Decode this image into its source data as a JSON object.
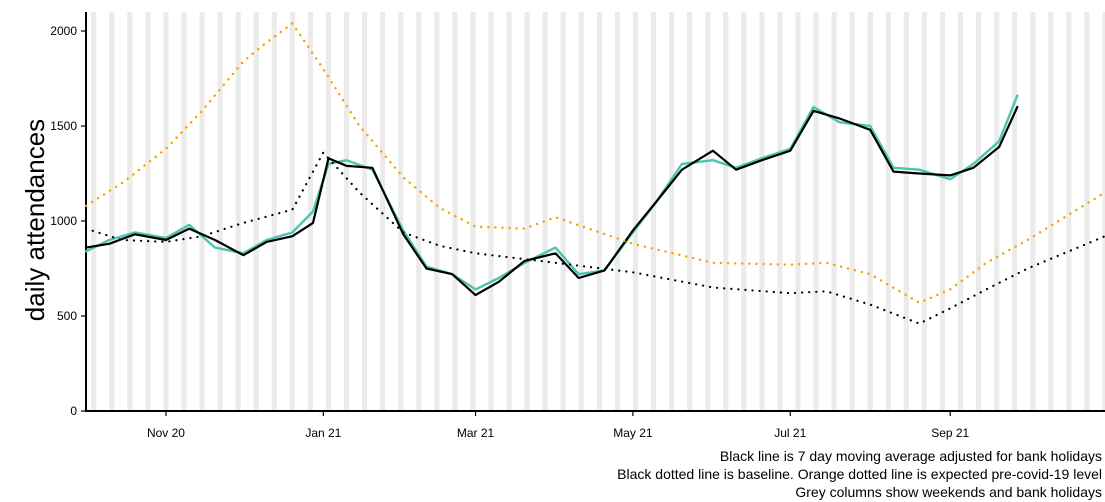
{
  "chart_data": {
    "type": "line",
    "title": "",
    "xlabel": "",
    "ylabel": "daily attendances",
    "x_range": [
      "2020-10-01",
      "2021-10-31"
    ],
    "ylim": [
      0,
      2100
    ],
    "y_ticks": [
      0,
      500,
      1000,
      1500,
      2000
    ],
    "x_ticks": [
      {
        "date": "2020-11-01",
        "label": "Nov 20"
      },
      {
        "date": "2021-01-01",
        "label": "Jan 21"
      },
      {
        "date": "2021-03-01",
        "label": "Mar 21"
      },
      {
        "date": "2021-05-01",
        "label": "May 21"
      },
      {
        "date": "2021-07-01",
        "label": "Jul 21"
      },
      {
        "date": "2021-09-01",
        "label": "Sep 21"
      }
    ],
    "grid": false,
    "background_bands": "weekends and bank holidays",
    "colors": {
      "actual": "#4cc4ae",
      "moving_average": "#000000",
      "baseline": "#000000",
      "expected": "#f5a300",
      "band": "#ebebeb"
    },
    "series": [
      {
        "style": "solid",
        "x": [
          "2020-10-01",
          "2020-10-10",
          "2020-10-20",
          "2020-11-01",
          "2020-11-10",
          "2020-11-20",
          "2020-12-01",
          "2020-12-10",
          "2020-12-20",
          "2020-12-28",
          "2021-01-03",
          "2021-01-10",
          "2021-01-20",
          "2021-02-01",
          "2021-02-10",
          "2021-02-20",
          "2021-03-01",
          "2021-03-10",
          "2021-03-20",
          "2021-04-01",
          "2021-04-10",
          "2021-04-20",
          "2021-05-01",
          "2021-05-10",
          "2021-05-20",
          "2021-06-01",
          "2021-06-10",
          "2021-06-20",
          "2021-07-01",
          "2021-07-10",
          "2021-07-20",
          "2021-08-01",
          "2021-08-10",
          "2021-08-20",
          "2021-09-01",
          "2021-09-10",
          "2021-09-20",
          "2021-09-27"
        ],
        "values": [
          840,
          900,
          940,
          910,
          980,
          860,
          830,
          900,
          940,
          1050,
          1300,
          1320,
          1270,
          950,
          760,
          720,
          640,
          700,
          780,
          860,
          720,
          740,
          940,
          1100,
          1300,
          1320,
          1280,
          1330,
          1380,
          1600,
          1520,
          1500,
          1280,
          1270,
          1220,
          1300,
          1420,
          1660
        ]
      },
      {
        "style": "solid",
        "x": [
          "2020-10-01",
          "2020-10-10",
          "2020-10-20",
          "2020-11-01",
          "2020-11-10",
          "2020-11-20",
          "2020-12-01",
          "2020-12-10",
          "2020-12-20",
          "2020-12-28",
          "2021-01-03",
          "2021-01-10",
          "2021-01-20",
          "2021-02-01",
          "2021-02-10",
          "2021-02-20",
          "2021-03-01",
          "2021-03-10",
          "2021-03-20",
          "2021-04-01",
          "2021-04-10",
          "2021-04-20",
          "2021-05-01",
          "2021-05-10",
          "2021-05-20",
          "2021-06-01",
          "2021-06-10",
          "2021-06-20",
          "2021-07-01",
          "2021-07-10",
          "2021-07-20",
          "2021-08-01",
          "2021-08-10",
          "2021-08-20",
          "2021-09-01",
          "2021-09-10",
          "2021-09-20",
          "2021-09-27"
        ],
        "values": [
          860,
          880,
          930,
          900,
          960,
          900,
          820,
          890,
          920,
          990,
          1330,
          1290,
          1280,
          930,
          750,
          720,
          610,
          680,
          790,
          830,
          700,
          740,
          950,
          1100,
          1270,
          1370,
          1270,
          1320,
          1370,
          1580,
          1540,
          1480,
          1260,
          1250,
          1240,
          1280,
          1390,
          1600
        ]
      },
      {
        "style": "dotted",
        "x": [
          "2020-10-01",
          "2020-10-15",
          "2020-11-01",
          "2020-11-15",
          "2020-12-01",
          "2020-12-20",
          "2021-01-01",
          "2021-01-15",
          "2021-02-01",
          "2021-02-15",
          "2021-03-01",
          "2021-04-01",
          "2021-05-01",
          "2021-06-01",
          "2021-07-01",
          "2021-07-15",
          "2021-08-01",
          "2021-08-20",
          "2021-09-01",
          "2021-09-15",
          "2021-10-01",
          "2021-10-31"
        ],
        "values": [
          960,
          900,
          890,
          920,
          990,
          1060,
          1360,
          1150,
          940,
          870,
          830,
          780,
          730,
          650,
          620,
          630,
          560,
          460,
          540,
          640,
          750,
          920
        ]
      },
      {
        "style": "dotted",
        "x": [
          "2020-10-01",
          "2020-10-15",
          "2020-11-01",
          "2020-11-15",
          "2020-12-01",
          "2020-12-10",
          "2020-12-20",
          "2021-01-01",
          "2021-01-15",
          "2021-02-01",
          "2021-02-15",
          "2021-03-01",
          "2021-03-20",
          "2021-04-01",
          "2021-05-01",
          "2021-06-01",
          "2021-07-01",
          "2021-07-15",
          "2021-08-01",
          "2021-08-20",
          "2021-09-01",
          "2021-09-15",
          "2021-10-01",
          "2021-10-31"
        ],
        "values": [
          1080,
          1200,
          1380,
          1580,
          1840,
          1940,
          2040,
          1800,
          1500,
          1230,
          1070,
          970,
          960,
          1020,
          880,
          780,
          770,
          780,
          720,
          570,
          640,
          780,
          900,
          1150
        ]
      }
    ],
    "annotations": [
      "Black line is 7 day moving average adjusted for bank holidays",
      "Black dotted line is baseline. Orange dotted line is expected pre-covid-19 level",
      "Grey columns show weekends and bank holidays"
    ]
  }
}
